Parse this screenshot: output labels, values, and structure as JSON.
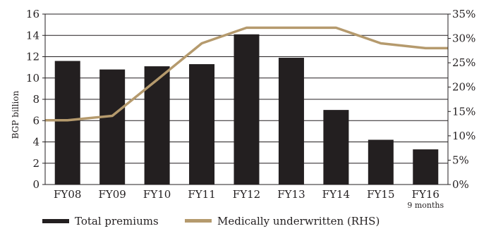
{
  "chart_data": {
    "type": "bar",
    "categories": [
      "FY08",
      "FY09",
      "FY10",
      "FY11",
      "FY12",
      "FY13",
      "FY14",
      "FY15",
      "FY16"
    ],
    "category_sublabels": [
      "",
      "",
      "",
      "",
      "",
      "",
      "",
      "",
      "9 months"
    ],
    "series": [
      {
        "name": "Total premiums",
        "type": "bar",
        "axis": "left",
        "values": [
          11.6,
          10.8,
          11.1,
          11.3,
          14.1,
          11.9,
          7.0,
          4.2,
          3.3
        ]
      },
      {
        "name": "Medically underwritten (RHS)",
        "type": "line",
        "axis": "right",
        "values": [
          13.2,
          14.1,
          21.5,
          29.0,
          32.2,
          32.2,
          32.2,
          29.0,
          28.0
        ]
      }
    ],
    "ylabel": "BGP billion",
    "ylim": [
      0,
      16
    ],
    "yticks": [
      "0",
      "2",
      "4",
      "6",
      "8",
      "10",
      "12",
      "14",
      "16"
    ],
    "y2lim": [
      0,
      35
    ],
    "y2ticks": [
      "0%",
      "5%",
      "10%",
      "15%",
      "20%",
      "25%",
      "30%",
      "35%"
    ],
    "grid": "horizontal",
    "legend_position": "bottom",
    "colors": {
      "bar": "#231f20",
      "line": "#b59a6d",
      "grid": "#231f20",
      "axis": "#231f20"
    }
  }
}
